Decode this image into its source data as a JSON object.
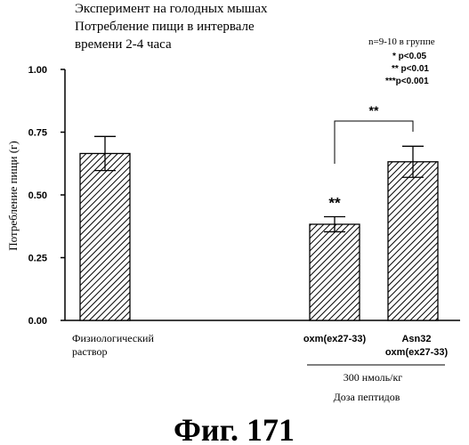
{
  "chart_data": {
    "type": "bar",
    "title_lines": [
      "Эксперимент на голодных мышах",
      "Потребление пищи в интервале",
      "времени 2-4 часа"
    ],
    "ylabel": "Потребление пищи (г)",
    "ylim": [
      0,
      1.0
    ],
    "yticks": [
      "0.00",
      "0.25",
      "0.50",
      "0.75",
      "1.00"
    ],
    "categories": [
      [
        "Физиологический",
        "раствор"
      ],
      [
        "oxm(ex27-33)"
      ],
      [
        "Asn32",
        "oxm(ex27-33)"
      ]
    ],
    "values": [
      0.665,
      0.383,
      0.632
    ],
    "errors": [
      0.068,
      0.03,
      0.062
    ],
    "significance_labels": [
      "",
      "**",
      ""
    ],
    "bracket": {
      "from": 1,
      "to": 2,
      "label": "**"
    },
    "group_label": "300 нмоль/кг",
    "xlabel": "Доза пептидов",
    "legend": {
      "n_text": "n=9-10 в группе",
      "items": [
        "*  p<0.05",
        "** p<0.01",
        "***p<0.001"
      ]
    },
    "bar_pattern": "diagonal-hatch"
  },
  "figure_caption": "Фиг. 171"
}
